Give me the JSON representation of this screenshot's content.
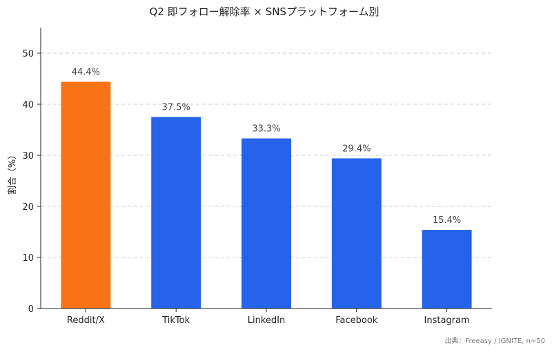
{
  "chart_data": {
    "type": "bar",
    "title": "Q2 即フォロー解除率 × SNSプラットフォーム別",
    "xlabel": "",
    "ylabel": "割合（%）",
    "categories": [
      "Reddit/X",
      "TikTok",
      "LinkedIn",
      "Facebook",
      "Instagram"
    ],
    "values": [
      44.4,
      37.5,
      33.3,
      29.4,
      15.4
    ],
    "value_labels": [
      "44.4%",
      "37.5%",
      "33.3%",
      "29.4%",
      "15.4%"
    ],
    "ylim": [
      0,
      55
    ],
    "yticks": [
      0,
      10,
      20,
      30,
      40,
      50
    ],
    "grid": true,
    "highlight_index": 0,
    "colors": {
      "highlight": "#F97316",
      "default": "#2563EB"
    }
  },
  "source_note": "出典：Freeasy / IGNITE, n=50"
}
